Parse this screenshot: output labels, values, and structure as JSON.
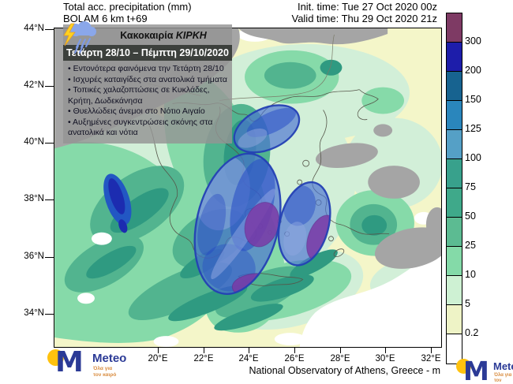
{
  "header": {
    "title_line1": "Total acc. precipitation (mm)",
    "title_line2": "BOLAM 6 km t+69",
    "init_time": "Init. time: Tue 27 Oct 2020 00z",
    "valid_time": "Valid time: Thu 29 Oct 2020 21z"
  },
  "info_box": {
    "storm_label": "Κακοκαιρία",
    "storm_name": "ΚΙΡΚΗ",
    "date_range": "Τετάρτη 28/10 – Πέμπτη 29/10/2020",
    "bullets": [
      "Εντονότερα φαινόμενα την Τετάρτη 28/10",
      "Ισχυρές καταιγίδες στα ανατολικά τμήματα",
      "Τοπικές χαλαζοπτώσεις σε Κυκλάδες, Κρήτη, Δωδεκάνησα",
      "Θυελλώδεις άνεμοι στο Νότιο Αιγαίο",
      "Αυξημένες συγκεντρώσεις σκόνης στα ανατολικά και νότια"
    ]
  },
  "map": {
    "y_axis": [
      "44°N",
      "42°N",
      "40°N",
      "38°N",
      "36°N",
      "34°N"
    ],
    "x_axis": [
      "20°E",
      "22°E",
      "24°E",
      "26°E",
      "28°E",
      "30°E",
      "32°E"
    ]
  },
  "legend": {
    "unit": "mm",
    "labels": [
      "300",
      "200",
      "150",
      "125",
      "100",
      "75",
      "50",
      "25",
      "10",
      "5",
      "0.2"
    ],
    "colors": [
      "#7e3a64",
      "#1d1daa",
      "#176390",
      "#2a86bc",
      "#55a0c6",
      "#38a18c",
      "#3fa98a",
      "#5cbb92",
      "#84daa8",
      "#cef1d3",
      "#eef3c6",
      "#ffffff"
    ]
  },
  "footer": {
    "credit": "National Observatory of Athens, Greece - m"
  },
  "logo": {
    "name": "Meteo",
    "tagline1": "Όλα για",
    "tagline2": "τον καιρό"
  },
  "colors": {
    "sea_low": "#f4f6c9",
    "land_no_precip": "#a5a5a5",
    "highlight_ellipse_fill": "#4c74d2",
    "highlight_ellipse_border": "#2440b4",
    "extreme_area_purple": "#7a3aa6",
    "logo_blue": "#2b3a96",
    "logo_yellow": "#ffc20e"
  }
}
